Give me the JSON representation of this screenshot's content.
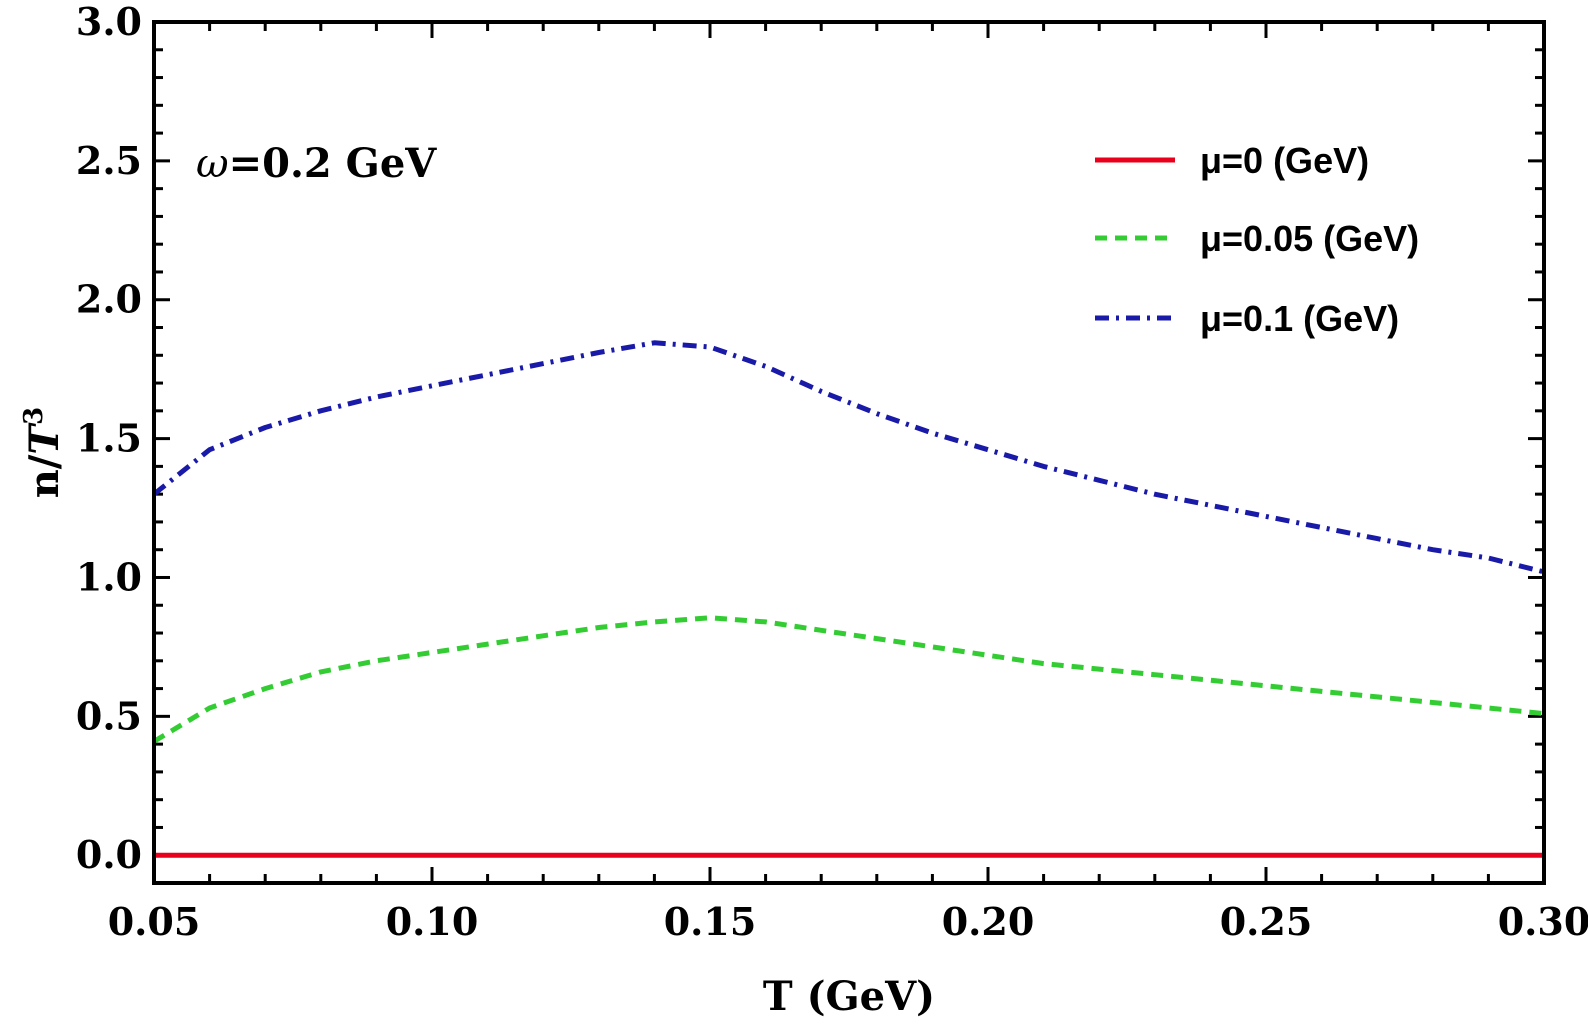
{
  "chart_data": {
    "type": "line",
    "xlabel": "T (GeV)",
    "ylabel": {
      "base": "n/",
      "var": "T",
      "exp": "3"
    },
    "xlim": [
      0.05,
      0.3
    ],
    "ylim": [
      -0.1,
      3.0
    ],
    "x_ticks": [
      "0.05",
      "0.10",
      "0.15",
      "0.20",
      "0.25",
      "0.30"
    ],
    "x_tick_values": [
      0.05,
      0.1,
      0.15,
      0.2,
      0.25,
      0.3
    ],
    "y_ticks": [
      "0.0",
      "0.5",
      "1.0",
      "1.5",
      "2.0",
      "2.5",
      "3.0"
    ],
    "y_tick_values": [
      0.0,
      0.5,
      1.0,
      1.5,
      2.0,
      2.5,
      3.0
    ],
    "grid": false,
    "legend_position": "top-right",
    "annotation": {
      "symbol": "ω",
      "text": "=0.2 GeV"
    },
    "series": [
      {
        "name": "μ=0 (GeV)",
        "color": "#e8001c",
        "style": "solid",
        "x": [
          0.05,
          0.1,
          0.15,
          0.2,
          0.25,
          0.3
        ],
        "y": [
          0.0,
          0.0,
          0.0,
          0.0,
          0.0,
          0.0
        ]
      },
      {
        "name": "μ=0.05 (GeV)",
        "color": "#33cc33",
        "style": "dashed",
        "x": [
          0.05,
          0.06,
          0.07,
          0.08,
          0.09,
          0.1,
          0.11,
          0.12,
          0.13,
          0.14,
          0.15,
          0.16,
          0.17,
          0.18,
          0.19,
          0.2,
          0.21,
          0.22,
          0.23,
          0.24,
          0.25,
          0.26,
          0.27,
          0.28,
          0.29,
          0.3
        ],
        "y": [
          0.41,
          0.53,
          0.6,
          0.66,
          0.7,
          0.73,
          0.76,
          0.79,
          0.82,
          0.84,
          0.855,
          0.84,
          0.81,
          0.78,
          0.75,
          0.72,
          0.69,
          0.67,
          0.65,
          0.63,
          0.61,
          0.59,
          0.57,
          0.55,
          0.53,
          0.51
        ]
      },
      {
        "name": "μ=0.1 (GeV)",
        "color": "#1a1aa8",
        "style": "dashdot",
        "x": [
          0.05,
          0.06,
          0.07,
          0.08,
          0.09,
          0.1,
          0.11,
          0.12,
          0.13,
          0.14,
          0.15,
          0.16,
          0.17,
          0.18,
          0.19,
          0.2,
          0.21,
          0.22,
          0.23,
          0.24,
          0.25,
          0.26,
          0.27,
          0.28,
          0.29,
          0.3
        ],
        "y": [
          1.3,
          1.46,
          1.54,
          1.6,
          1.65,
          1.69,
          1.73,
          1.77,
          1.81,
          1.845,
          1.83,
          1.76,
          1.67,
          1.59,
          1.52,
          1.46,
          1.4,
          1.35,
          1.3,
          1.26,
          1.22,
          1.18,
          1.14,
          1.1,
          1.07,
          1.02
        ]
      }
    ]
  }
}
